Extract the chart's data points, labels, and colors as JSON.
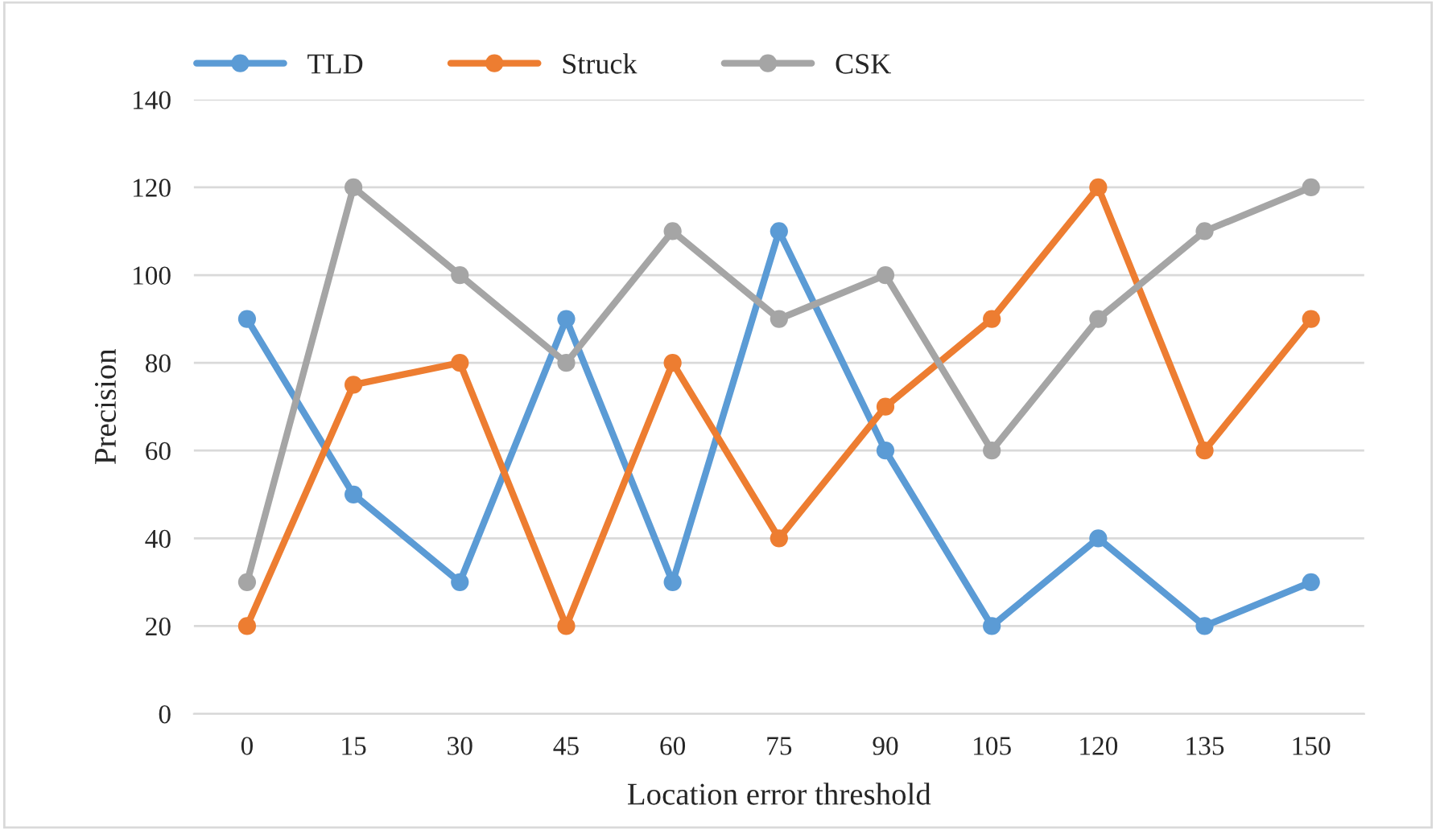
{
  "chart_data": {
    "type": "line",
    "xlabel": "Location error threshold",
    "ylabel": "Precision",
    "categories": [
      "0",
      "15",
      "30",
      "45",
      "60",
      "75",
      "90",
      "105",
      "120",
      "135",
      "150"
    ],
    "series": [
      {
        "name": "TLD",
        "color": "#5b9bd5",
        "values": [
          90,
          50,
          30,
          90,
          30,
          110,
          60,
          20,
          40,
          20,
          30
        ]
      },
      {
        "name": "Struck",
        "color": "#ed7d31",
        "values": [
          20,
          75,
          80,
          20,
          80,
          40,
          70,
          90,
          120,
          60,
          90
        ]
      },
      {
        "name": "CSK",
        "color": "#a5a5a5",
        "values": [
          30,
          120,
          100,
          80,
          110,
          90,
          100,
          60,
          90,
          110,
          120
        ]
      }
    ],
    "ylim": [
      0,
      140
    ],
    "yticks": [
      0,
      20,
      40,
      60,
      80,
      100,
      120,
      140
    ],
    "grid": "y",
    "legend": "top left",
    "marker": "circle",
    "line_style": "solid"
  }
}
